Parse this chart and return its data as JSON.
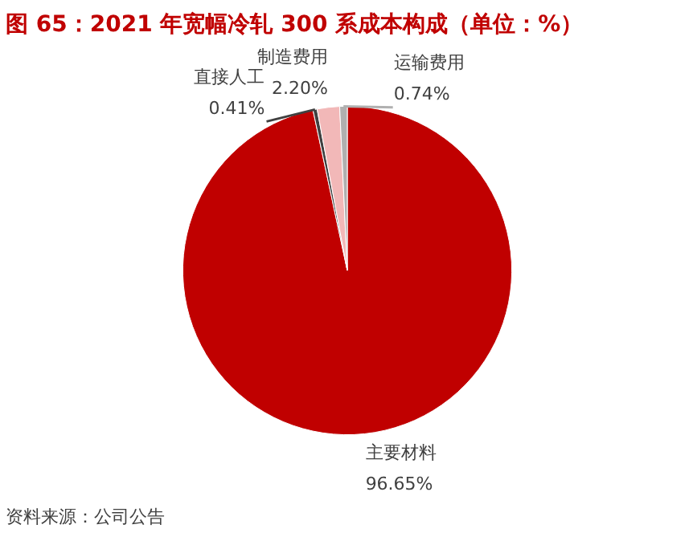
{
  "chart_data": {
    "type": "pie",
    "title": "图 65：2021 年宽幅冷轧 300 系成本构成（单位：%）",
    "categories": [
      "主要材料",
      "直接人工",
      "制造费用",
      "运输费用"
    ],
    "values": [
      96.65,
      0.41,
      2.2,
      0.74
    ],
    "value_labels": [
      "96.65%",
      "0.41%",
      "2.20%",
      "0.74%"
    ],
    "colors": [
      "#c00000",
      "#404040",
      "#f2b8b8",
      "#b0b0b0"
    ],
    "annotations": [
      "资料来源：公司公告"
    ]
  }
}
